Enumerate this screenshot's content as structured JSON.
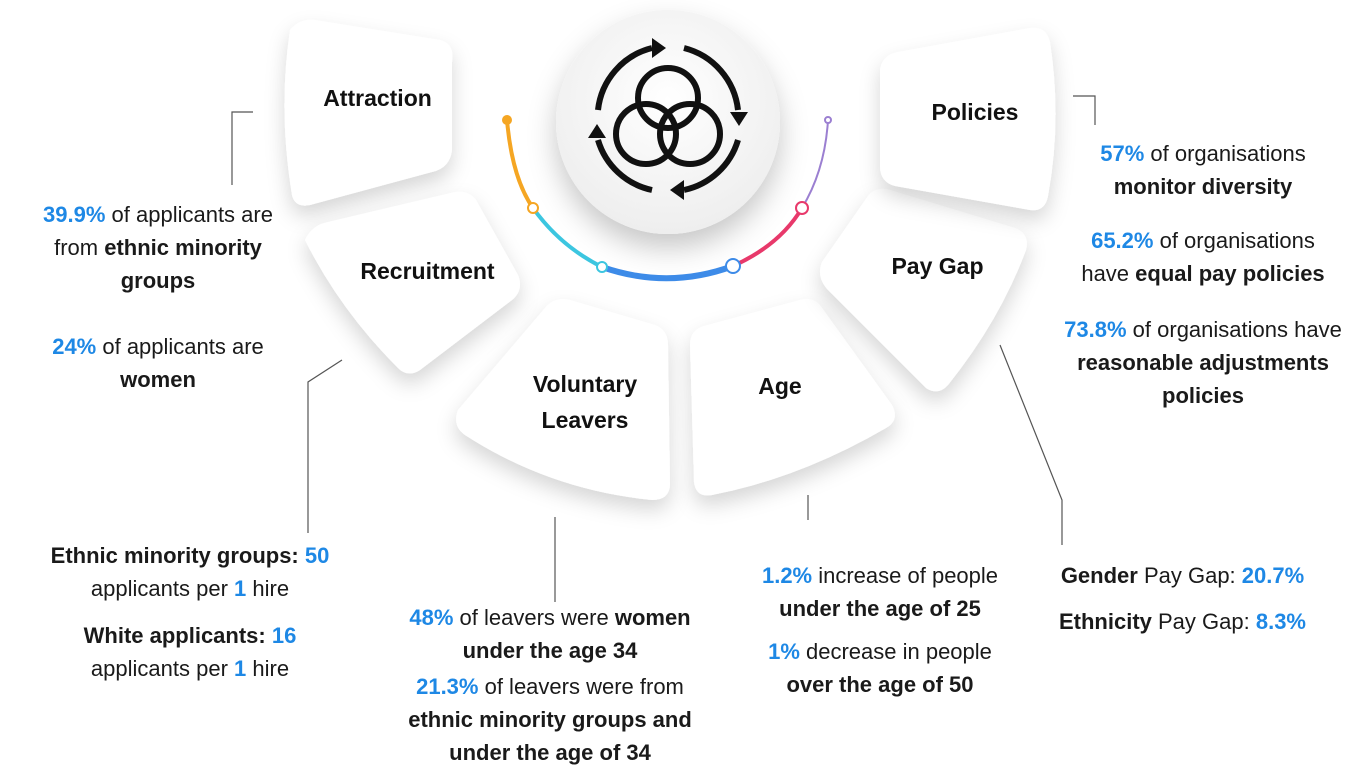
{
  "segments": {
    "attraction": "Attraction",
    "recruitment": "Recruitment",
    "voluntary_leavers_1": "Voluntary",
    "voluntary_leavers_2": "Leavers",
    "age": "Age",
    "pay_gap": "Pay Gap",
    "policies": "Policies"
  },
  "center_icon": "overlapping-circles-cycle-icon",
  "attraction_stats": {
    "s1_value": "39.9%",
    "s1_text_a": " of applicants are",
    "s1_text_b": "from ",
    "s1_bold_b": "ethnic minority",
    "s1_bold_c": "groups",
    "s2_value": "24%",
    "s2_text_a": " of applicants are",
    "s2_bold_b": "women"
  },
  "recruitment_stats": {
    "s1_label": "Ethnic minority groups: ",
    "s1_value": "50",
    "s1_text_a": "applicants per ",
    "s1_num": "1",
    "s1_text_b": " hire",
    "s2_label": "White applicants: ",
    "s2_value": "16",
    "s2_text_a": "applicants per ",
    "s2_num": "1",
    "s2_text_b": " hire"
  },
  "leavers_stats": {
    "s1_value": "48%",
    "s1_text": " of leavers were ",
    "s1_bold_a": "women",
    "s1_bold_b": "under the age 34",
    "s2_value": "21.3%",
    "s2_text": " of leavers were from",
    "s2_bold_b": "ethnic minority groups and",
    "s2_bold_c": "under the age of 34"
  },
  "age_stats": {
    "s1_value": "1.2%",
    "s1_text": " increase of people",
    "s1_bold_b": "under the age of 25",
    "s2_value": "1%",
    "s2_text": " decrease in people",
    "s2_bold_b": "over the age of 50"
  },
  "paygap_stats": {
    "s1_bold": "Gender",
    "s1_text": " Pay Gap: ",
    "s1_value": "20.7%",
    "s2_bold": "Ethnicity",
    "s2_text": " Pay Gap: ",
    "s2_value": "8.3%"
  },
  "policies_stats": {
    "s1_value": "57%",
    "s1_text": " of organisations",
    "s1_bold_b": "monitor diversity",
    "s2_value": "65.2%",
    "s2_text": " of organisations",
    "s2_text_b": "have ",
    "s2_bold_b": "equal pay policies",
    "s3_value": "73.8%",
    "s3_text": " of organisations have",
    "s3_bold_b": "reasonable adjustments",
    "s3_bold_c": "policies"
  },
  "colors": {
    "accent_blue": "#1e88e5",
    "arc_orange": "#f5a623",
    "arc_cyan": "#3cc6e0",
    "arc_blue": "#3d8be8",
    "arc_pink": "#e8396b",
    "arc_purple": "#9b7fd1",
    "connector": "#555555"
  }
}
